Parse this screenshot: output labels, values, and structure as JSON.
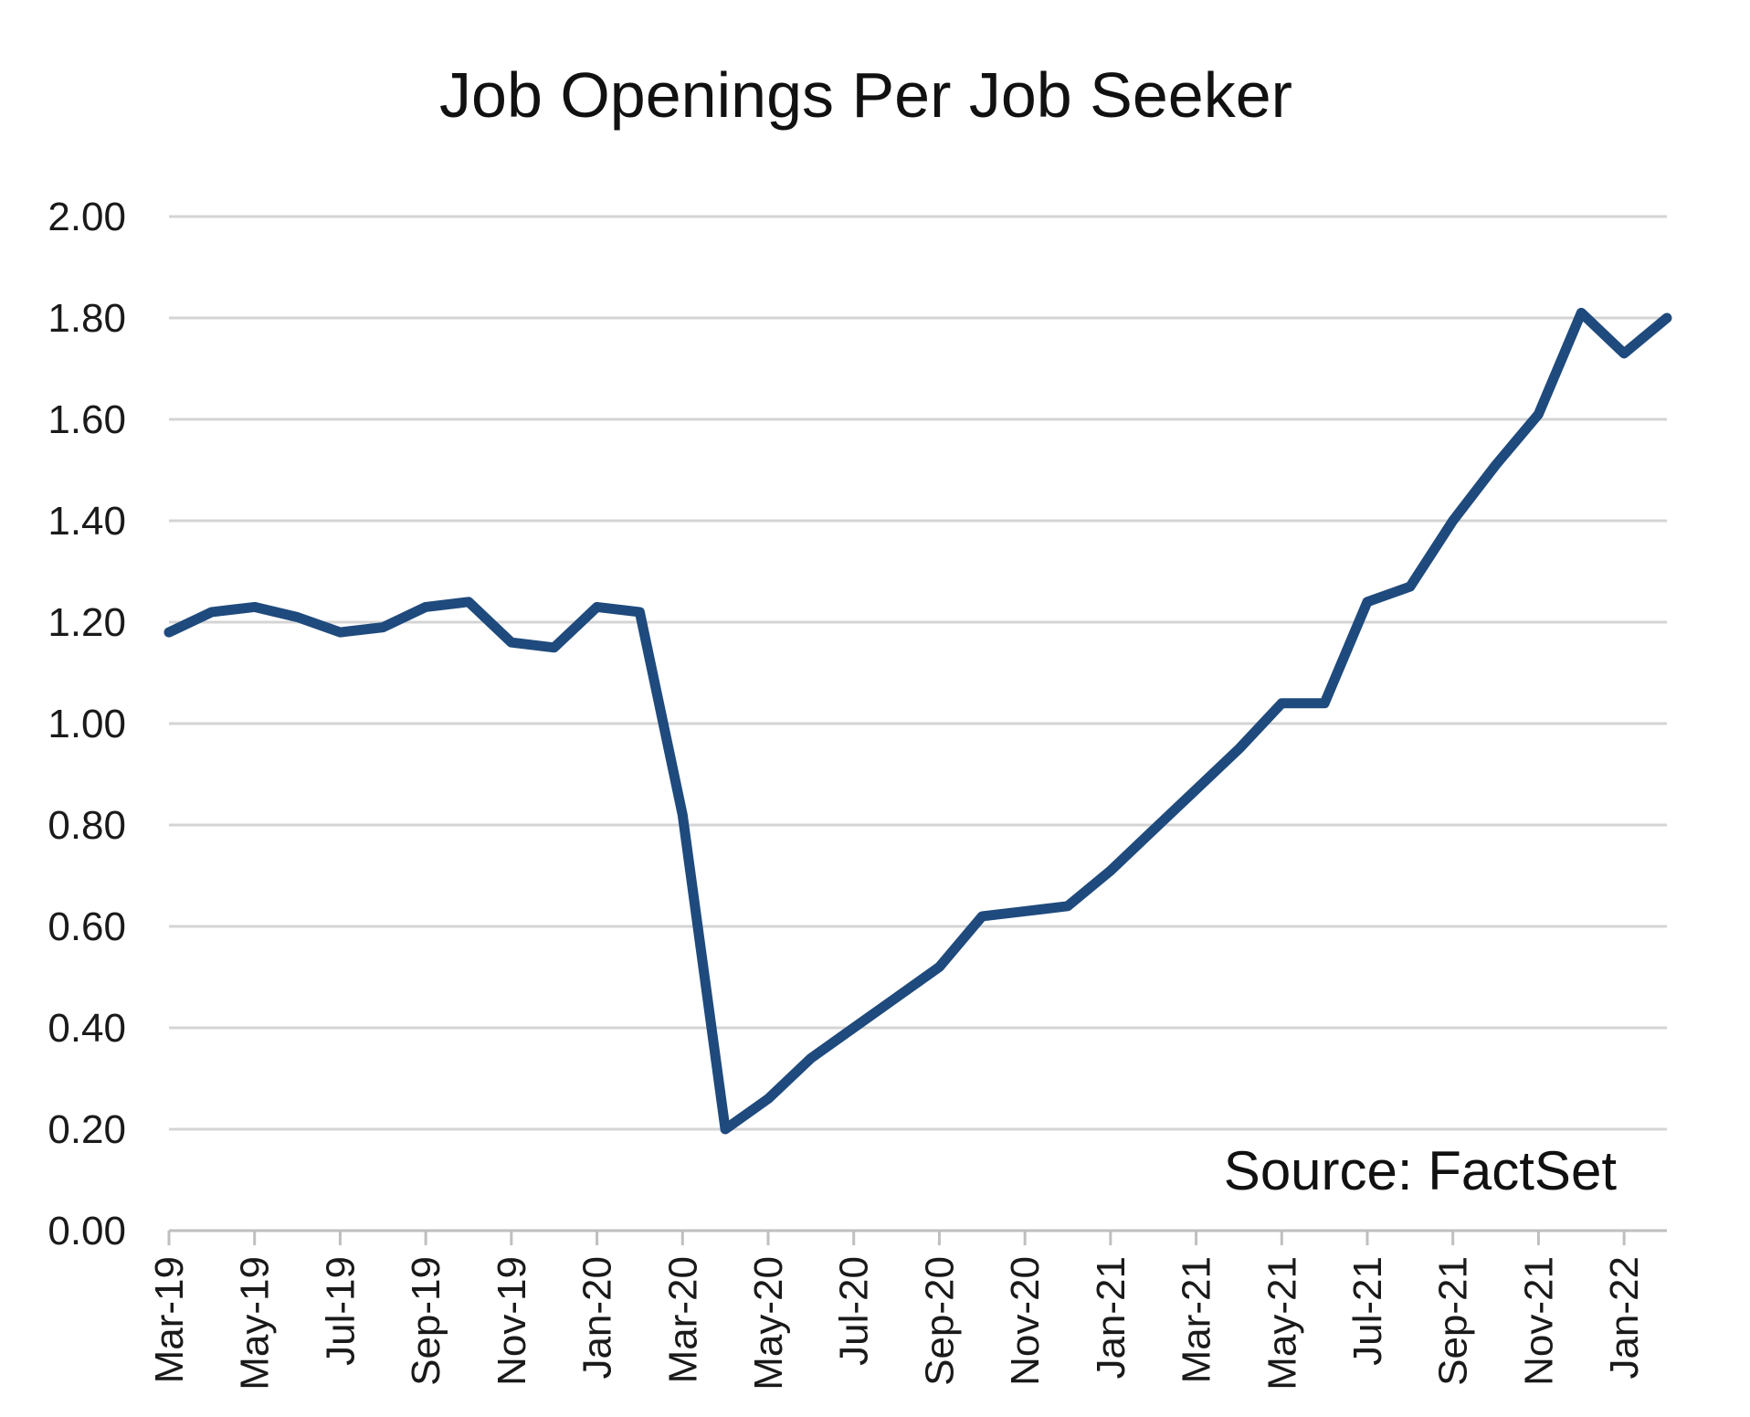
{
  "chart_data": {
    "type": "line",
    "title": "Job Openings Per Job Seeker",
    "xlabel": "",
    "ylabel": "",
    "ylim": [
      0,
      2
    ],
    "yticks": [
      "0.00",
      "0.20",
      "0.40",
      "0.60",
      "0.80",
      "1.00",
      "1.20",
      "1.40",
      "1.60",
      "1.80",
      "2.00"
    ],
    "x_tick_labels": [
      "Mar-19",
      "May-19",
      "Jul-19",
      "Sep-19",
      "Nov-19",
      "Jan-20",
      "Mar-20",
      "May-20",
      "Jul-20",
      "Sep-20",
      "Nov-20",
      "Jan-21",
      "Mar-21",
      "May-21",
      "Jul-21",
      "Sep-21",
      "Nov-21",
      "Jan-22"
    ],
    "x": [
      "Mar-19",
      "Apr-19",
      "May-19",
      "Jun-19",
      "Jul-19",
      "Aug-19",
      "Sep-19",
      "Oct-19",
      "Nov-19",
      "Dec-19",
      "Jan-20",
      "Feb-20",
      "Mar-20",
      "Apr-20",
      "May-20",
      "Jun-20",
      "Jul-20",
      "Aug-20",
      "Sep-20",
      "Oct-20",
      "Nov-20",
      "Dec-20",
      "Jan-21",
      "Feb-21",
      "Mar-21",
      "Apr-21",
      "May-21",
      "Jun-21",
      "Jul-21",
      "Aug-21",
      "Sep-21",
      "Oct-21",
      "Nov-21",
      "Dec-21",
      "Jan-22",
      "Feb-22"
    ],
    "series": [
      {
        "values": [
          1.18,
          1.22,
          1.23,
          1.21,
          1.18,
          1.19,
          1.23,
          1.24,
          1.16,
          1.15,
          1.23,
          1.22,
          0.82,
          0.2,
          0.26,
          0.34,
          0.4,
          0.46,
          0.52,
          0.62,
          0.63,
          0.64,
          0.71,
          0.79,
          0.87,
          0.95,
          1.04,
          1.04,
          1.24,
          1.27,
          1.4,
          1.51,
          1.61,
          1.81,
          1.73,
          1.8
        ],
        "color": "#1f4a7d"
      }
    ],
    "grid": true,
    "legend": "none",
    "annotation": "Source: FactSet"
  }
}
